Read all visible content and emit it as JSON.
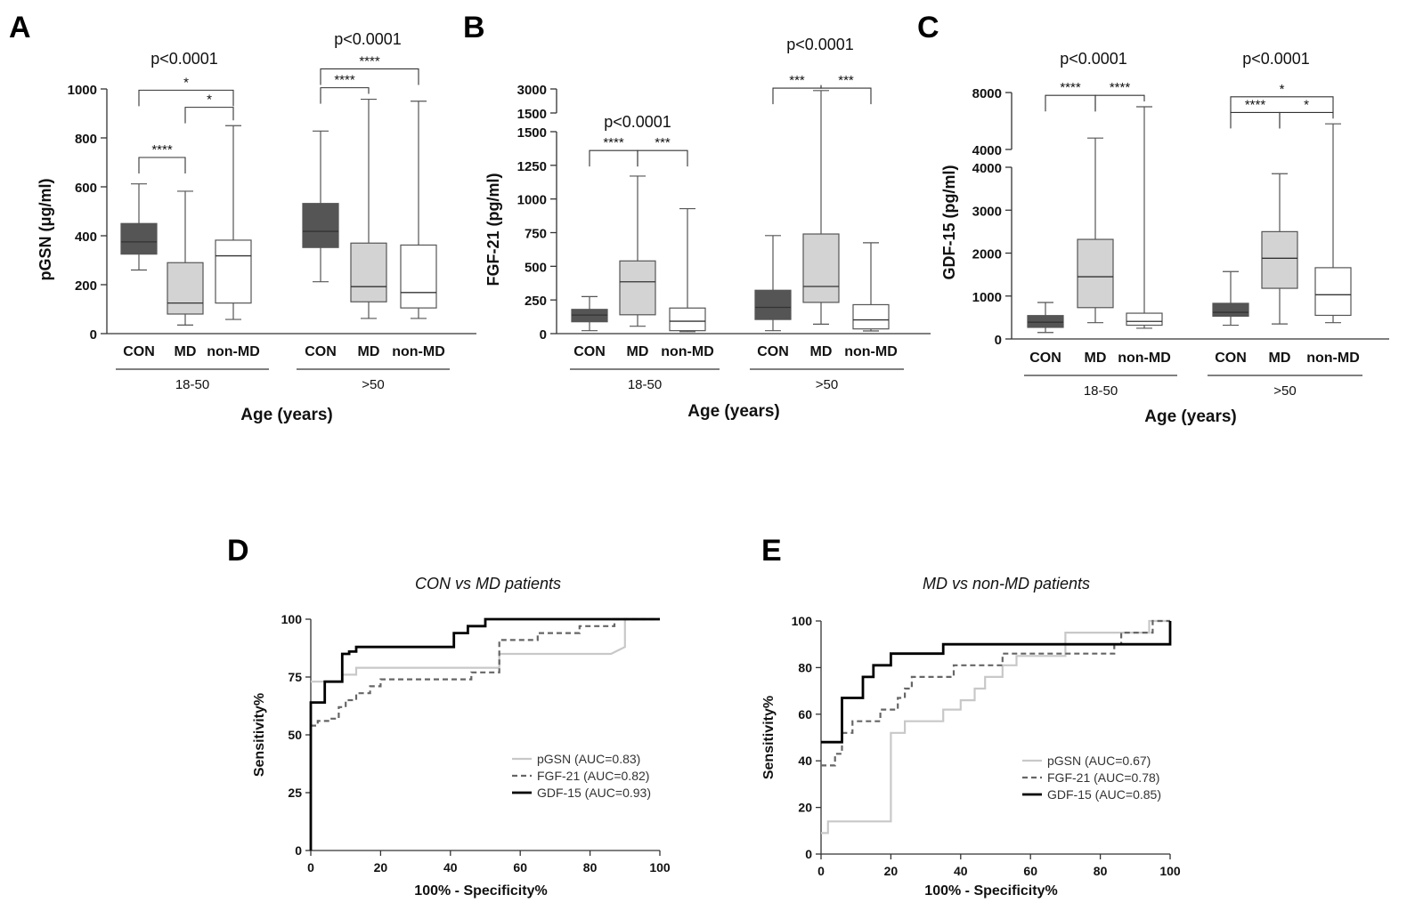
{
  "chart_data": [
    {
      "type": "box",
      "panel": "A",
      "title": "",
      "ylabel": "pGSN (μg/ml)",
      "xlabel": "Age (years)",
      "ylim": [
        0,
        1000
      ],
      "yticks": [
        0,
        200,
        400,
        600,
        800,
        1000
      ],
      "groups": [
        {
          "label": "18-50",
          "overall_p": "p<0.0001",
          "boxes": [
            {
              "category": "CON",
              "min": 260,
              "q1": 325,
              "median": 375,
              "q3": 450,
              "max": 612,
              "fill": "#555555"
            },
            {
              "category": "MD",
              "min": 35,
              "q1": 80,
              "median": 125,
              "q3": 290,
              "max": 582,
              "fill": "#d3d3d3"
            },
            {
              "category": "non-MD",
              "min": 58,
              "q1": 125,
              "median": 318,
              "q3": 382,
              "max": 850,
              "fill": "#ffffff"
            }
          ],
          "brackets": [
            {
              "from": 0,
              "to": 1,
              "label": "****",
              "y": 720
            },
            {
              "from": 1,
              "to": 2,
              "label": "*",
              "y": 925
            },
            {
              "from": 0,
              "to": 2,
              "label": "*",
              "y": 995
            }
          ]
        },
        {
          "label": ">50",
          "overall_p": "p<0.0001",
          "boxes": [
            {
              "category": "CON",
              "min": 212,
              "q1": 352,
              "median": 418,
              "q3": 532,
              "max": 828,
              "fill": "#555555"
            },
            {
              "category": "MD",
              "min": 62,
              "q1": 130,
              "median": 192,
              "q3": 370,
              "max": 958,
              "fill": "#d3d3d3"
            },
            {
              "category": "non-MD",
              "min": 62,
              "q1": 105,
              "median": 168,
              "q3": 362,
              "max": 950,
              "fill": "#ffffff"
            }
          ],
          "brackets": [
            {
              "from": 0,
              "to": 1,
              "label": "****",
              "y": 1005
            },
            {
              "from": 0,
              "to": 2,
              "label": "****",
              "y": 1082
            }
          ]
        }
      ]
    },
    {
      "type": "box",
      "panel": "B",
      "title": "",
      "ylabel": "FGF-21 (pg/ml)",
      "xlabel": "Age (years)",
      "ylim": [
        0,
        1500
      ],
      "axis_break": {
        "lower": [
          0,
          1500
        ],
        "upper": [
          1500,
          3000
        ]
      },
      "yticks": [
        0,
        250,
        500,
        750,
        1000,
        1250,
        1500
      ],
      "upper_yticks": [
        1500,
        3000
      ],
      "groups": [
        {
          "label": "18-50",
          "overall_p": "p<0.0001",
          "boxes": [
            {
              "category": "CON",
              "min": 22,
              "q1": 88,
              "median": 138,
              "q3": 180,
              "max": 275,
              "fill": "#555555"
            },
            {
              "category": "MD",
              "min": 55,
              "q1": 140,
              "median": 385,
              "q3": 540,
              "max": 1170,
              "fill": "#d3d3d3"
            },
            {
              "category": "non-MD",
              "min": 15,
              "q1": 22,
              "median": 92,
              "q3": 190,
              "max": 928,
              "fill": "#ffffff"
            }
          ],
          "brackets": [
            {
              "from": 0,
              "to": 1,
              "label": "****",
              "y": 1360
            },
            {
              "from": 1,
              "to": 2,
              "label": "***",
              "y": 1360
            }
          ]
        },
        {
          "label": ">50",
          "overall_p": "p<0.0001",
          "boxes": [
            {
              "category": "CON",
              "min": 22,
              "q1": 105,
              "median": 195,
              "q3": 322,
              "max": 728,
              "fill": "#555555"
            },
            {
              "category": "MD",
              "min": 70,
              "q1": 232,
              "median": 350,
              "q3": 740,
              "max": 2900,
              "fill": "#d3d3d3"
            },
            {
              "category": "non-MD",
              "min": 20,
              "q1": 35,
              "median": 102,
              "q3": 215,
              "max": 675,
              "fill": "#ffffff"
            }
          ],
          "brackets": [
            {
              "from": 0,
              "to": 1,
              "label": "***",
              "y": 3050
            },
            {
              "from": 1,
              "to": 2,
              "label": "***",
              "y": 3050
            }
          ]
        }
      ]
    },
    {
      "type": "box",
      "panel": "C",
      "title": "",
      "ylabel": "GDF-15 (pg/ml)",
      "xlabel": "Age (years)",
      "ylim": [
        0,
        4000
      ],
      "axis_break": {
        "lower": [
          0,
          4000
        ],
        "upper": [
          4000,
          8000
        ]
      },
      "yticks": [
        0,
        1000,
        2000,
        3000,
        4000
      ],
      "upper_yticks": [
        4000,
        8000
      ],
      "groups": [
        {
          "label": "18-50",
          "overall_p": "p<0.0001",
          "boxes": [
            {
              "category": "CON",
              "min": 150,
              "q1": 270,
              "median": 390,
              "q3": 545,
              "max": 850,
              "fill": "#555555"
            },
            {
              "category": "MD",
              "min": 380,
              "q1": 730,
              "median": 1450,
              "q3": 2320,
              "max": 4800,
              "fill": "#d3d3d3"
            },
            {
              "category": "non-MD",
              "min": 250,
              "q1": 320,
              "median": 410,
              "q3": 600,
              "max": 7000,
              "fill": "#ffffff"
            }
          ],
          "brackets": [
            {
              "from": 0,
              "to": 1,
              "label": "****",
              "y": 7800
            },
            {
              "from": 1,
              "to": 2,
              "label": "****",
              "y": 7800
            }
          ]
        },
        {
          "label": ">50",
          "overall_p": "p<0.0001",
          "boxes": [
            {
              "category": "CON",
              "min": 320,
              "q1": 530,
              "median": 620,
              "q3": 830,
              "max": 1570,
              "fill": "#555555"
            },
            {
              "category": "MD",
              "min": 350,
              "q1": 1180,
              "median": 1880,
              "q3": 2500,
              "max": 3850,
              "fill": "#d3d3d3"
            },
            {
              "category": "non-MD",
              "min": 380,
              "q1": 550,
              "median": 1030,
              "q3": 1660,
              "max": 5800,
              "fill": "#ffffff"
            }
          ],
          "brackets": [
            {
              "from": 0,
              "to": 1,
              "label": "****",
              "y": 6600
            },
            {
              "from": 1,
              "to": 2,
              "label": "*",
              "y": 6600
            },
            {
              "from": 0,
              "to": 2,
              "label": "*",
              "y": 7700
            }
          ]
        }
      ]
    },
    {
      "type": "line",
      "panel": "D",
      "title": "CON vs MD patients",
      "xlabel": "100% - Specificity%",
      "ylabel": "Sensitivity%",
      "xlim": [
        0,
        100
      ],
      "ylim": [
        0,
        100
      ],
      "xticks": [
        0,
        20,
        40,
        60,
        80,
        100
      ],
      "yticks": [
        0,
        25,
        50,
        75,
        100
      ],
      "legend": "bottom-right",
      "series": [
        {
          "name": "pGSN (AUC=0.83)",
          "color": "#c8c8c8",
          "dash": "",
          "points": [
            [
              0,
              73
            ],
            [
              9,
              73
            ],
            [
              9,
              76
            ],
            [
              13,
              76
            ],
            [
              13,
              79
            ],
            [
              54,
              79
            ],
            [
              54,
              85
            ],
            [
              86,
              85
            ],
            [
              86,
              85
            ],
            [
              90,
              88
            ],
            [
              90,
              100
            ],
            [
              100,
              100
            ]
          ]
        },
        {
          "name": "FGF-21 (AUC=0.82)",
          "color": "#666666",
          "dash": "6,4",
          "points": [
            [
              0,
              54
            ],
            [
              2,
              54
            ],
            [
              2,
              56
            ],
            [
              5,
              56
            ],
            [
              5,
              57
            ],
            [
              8,
              57
            ],
            [
              8,
              62
            ],
            [
              10,
              62
            ],
            [
              10,
              65
            ],
            [
              13,
              65
            ],
            [
              13,
              68
            ],
            [
              17,
              68
            ],
            [
              17,
              71
            ],
            [
              20,
              71
            ],
            [
              20,
              74
            ],
            [
              46,
              74
            ],
            [
              46,
              77
            ],
            [
              54,
              77
            ],
            [
              54,
              91
            ],
            [
              65,
              91
            ],
            [
              65,
              94
            ],
            [
              77,
              94
            ],
            [
              77,
              97
            ],
            [
              87,
              97
            ],
            [
              87,
              100
            ],
            [
              100,
              100
            ]
          ]
        },
        {
          "name": "GDF-15 (AUC=0.93)",
          "color": "#000000",
          "dash": "",
          "points": [
            [
              0,
              0
            ],
            [
              0,
              64
            ],
            [
              4,
              64
            ],
            [
              4,
              73
            ],
            [
              9,
              73
            ],
            [
              9,
              85
            ],
            [
              11,
              85
            ],
            [
              11,
              86
            ],
            [
              13,
              86
            ],
            [
              13,
              88
            ],
            [
              41,
              88
            ],
            [
              41,
              94
            ],
            [
              45,
              94
            ],
            [
              45,
              97
            ],
            [
              47,
              97
            ],
            [
              50,
              97
            ],
            [
              50,
              100
            ],
            [
              100,
              100
            ]
          ]
        }
      ]
    },
    {
      "type": "line",
      "panel": "E",
      "title": "MD vs non-MD patients",
      "xlabel": "100% - Specificity%",
      "ylabel": "Sensitivity%",
      "xlim": [
        0,
        100
      ],
      "ylim": [
        0,
        100
      ],
      "xticks": [
        0,
        20,
        40,
        60,
        80,
        100
      ],
      "yticks": [
        0,
        20,
        40,
        60,
        80,
        100
      ],
      "legend": "bottom-right",
      "series": [
        {
          "name": "pGSN (AUC=0.67)",
          "color": "#c8c8c8",
          "dash": "",
          "points": [
            [
              0,
              9
            ],
            [
              2,
              9
            ],
            [
              2,
              14
            ],
            [
              20,
              14
            ],
            [
              20,
              52
            ],
            [
              24,
              52
            ],
            [
              24,
              57
            ],
            [
              30,
              57
            ],
            [
              35,
              57
            ],
            [
              35,
              62
            ],
            [
              40,
              62
            ],
            [
              40,
              66
            ],
            [
              44,
              66
            ],
            [
              44,
              71
            ],
            [
              47,
              71
            ],
            [
              47,
              76
            ],
            [
              52,
              76
            ],
            [
              52,
              81
            ],
            [
              56,
              81
            ],
            [
              56,
              85
            ],
            [
              70,
              85
            ],
            [
              70,
              95
            ],
            [
              94,
              95
            ],
            [
              94,
              100
            ],
            [
              100,
              100
            ]
          ]
        },
        {
          "name": "FGF-21 (AUC=0.78)",
          "color": "#666666",
          "dash": "6,4",
          "points": [
            [
              0,
              38
            ],
            [
              4,
              38
            ],
            [
              4,
              43
            ],
            [
              6,
              43
            ],
            [
              6,
              52
            ],
            [
              9,
              52
            ],
            [
              9,
              57
            ],
            [
              17,
              57
            ],
            [
              17,
              62
            ],
            [
              22,
              62
            ],
            [
              22,
              67
            ],
            [
              24,
              67
            ],
            [
              24,
              71
            ],
            [
              26,
              71
            ],
            [
              26,
              76
            ],
            [
              38,
              76
            ],
            [
              38,
              81
            ],
            [
              52,
              81
            ],
            [
              52,
              86
            ],
            [
              84,
              86
            ],
            [
              84,
              90
            ],
            [
              86,
              90
            ],
            [
              86,
              95
            ],
            [
              95,
              95
            ],
            [
              95,
              100
            ],
            [
              100,
              100
            ]
          ]
        },
        {
          "name": "GDF-15 (AUC=0.85)",
          "color": "#000000",
          "dash": "",
          "points": [
            [
              0,
              48
            ],
            [
              6,
              48
            ],
            [
              6,
              67
            ],
            [
              12,
              67
            ],
            [
              12,
              76
            ],
            [
              15,
              76
            ],
            [
              15,
              81
            ],
            [
              20,
              81
            ],
            [
              20,
              86
            ],
            [
              35,
              86
            ],
            [
              35,
              90
            ],
            [
              100,
              90
            ],
            [
              100,
              100
            ]
          ]
        }
      ]
    }
  ],
  "labels": {
    "panel_a": "A",
    "panel_b": "B",
    "panel_c": "C",
    "panel_d": "D",
    "panel_e": "E"
  }
}
